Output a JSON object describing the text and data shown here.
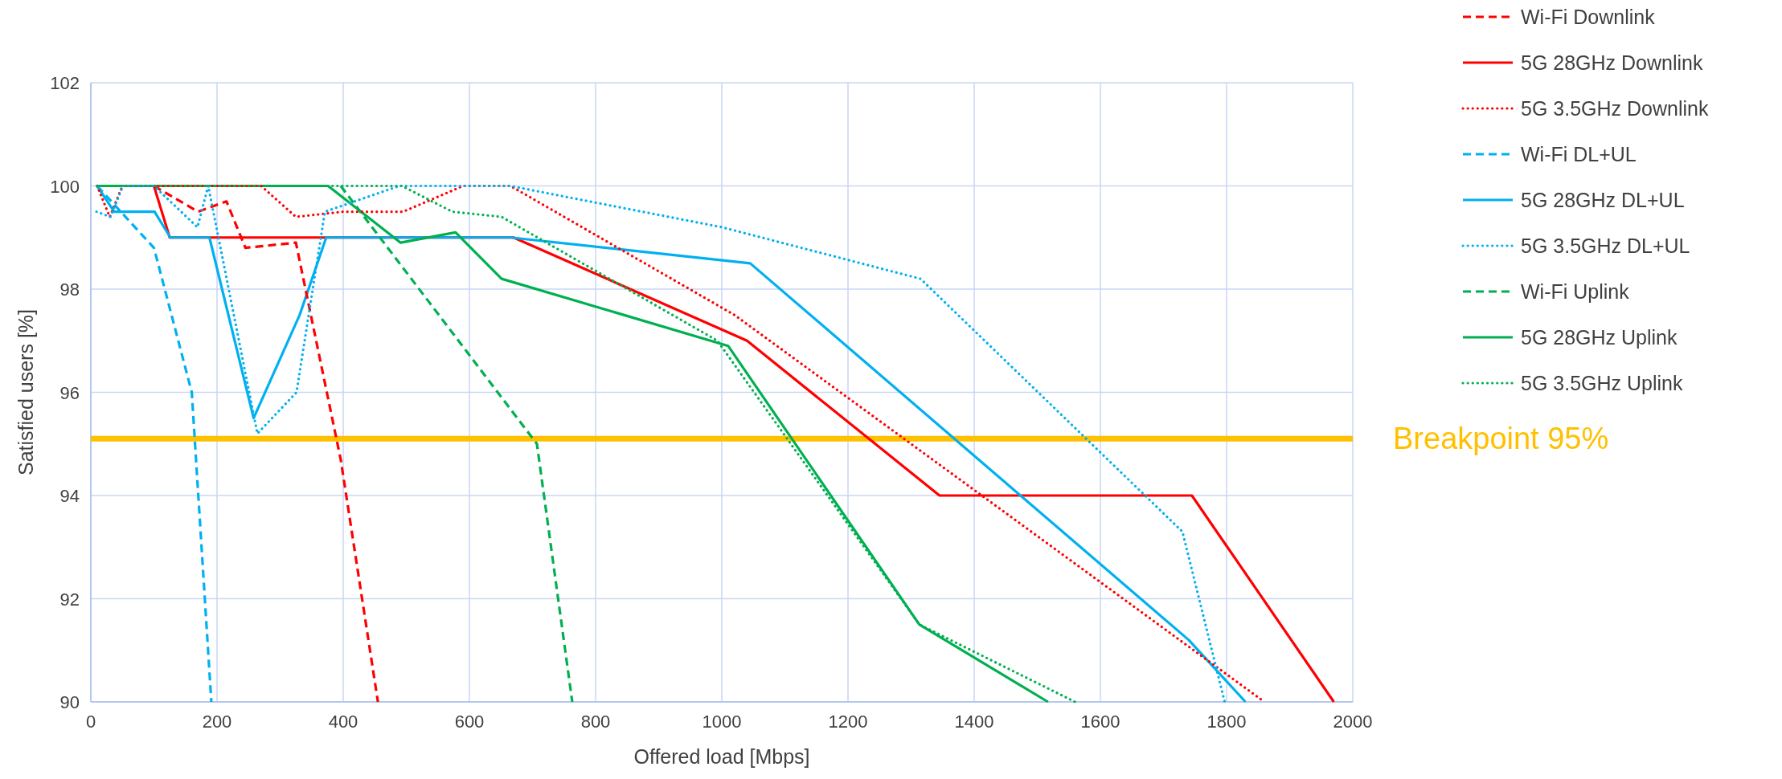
{
  "chart_data": {
    "type": "line",
    "xlabel": "Offered load [Mbps]",
    "ylabel": "Satisfied users [%]",
    "xlim": [
      0,
      2000
    ],
    "xticks": [
      0,
      200,
      400,
      600,
      800,
      1000,
      1200,
      1400,
      1600,
      1800,
      2000
    ],
    "ylim": [
      90,
      102
    ],
    "yticks": [
      90,
      92,
      94,
      96,
      98,
      100,
      102
    ],
    "grid": true,
    "legend": "top right",
    "marker": "none",
    "series": [
      {
        "name": "Wi-Fi Downlink",
        "color": "#ff0000",
        "line_style": "dashed",
        "x": [
          100,
          170,
          215,
          245,
          325,
          396,
          455
        ],
        "values": [
          100,
          99.5,
          99.7,
          98.8,
          98.9,
          94.7,
          90
        ]
      },
      {
        "name": "5G 28GHz Downlink",
        "color": "#ff0000",
        "line_style": "solid",
        "x": [
          10,
          100,
          125,
          670,
          1040,
          1345,
          1745,
          1970
        ],
        "values": [
          100,
          100,
          99,
          99,
          97,
          94,
          94,
          90
        ]
      },
      {
        "name": "5G 3.5GHz Downlink",
        "color": "#ff0000",
        "line_style": "dotted",
        "x": [
          10,
          30,
          50,
          270,
          325,
          400,
          495,
          590,
          665,
          1020,
          1860
        ],
        "values": [
          100,
          99.4,
          100,
          100,
          99.4,
          99.5,
          99.5,
          100,
          100,
          97.5,
          90
        ]
      },
      {
        "name": "Wi-Fi DL+UL",
        "color": "#00b0f0",
        "line_style": "dashed",
        "x": [
          10,
          100,
          160,
          191
        ],
        "values": [
          100,
          98.8,
          96,
          90
        ]
      },
      {
        "name": "5G 28GHz DL+UL",
        "color": "#00b0f0",
        "line_style": "solid",
        "x": [
          10,
          37,
          101,
          126,
          188,
          258,
          331,
          373,
          665,
          1045,
          1740,
          1830
        ],
        "values": [
          100,
          99.5,
          99.5,
          99,
          99,
          95.5,
          97.5,
          99,
          99,
          98.5,
          91.2,
          90
        ]
      },
      {
        "name": "5G 3.5GHz DL+UL",
        "color": "#00b0f0",
        "line_style": "dotted",
        "x": [
          9,
          31,
          51,
          100,
          169,
          186,
          264,
          326,
          371,
          489,
          665,
          748,
          1000,
          1315,
          1730,
          1797
        ],
        "values": [
          99.5,
          99.4,
          100,
          100,
          99.2,
          100,
          95.2,
          96,
          99.5,
          100,
          100,
          99.8,
          99.2,
          98.2,
          93.3,
          90
        ]
      },
      {
        "name": "Wi-Fi Uplink",
        "color": "#00b050",
        "line_style": "dashed",
        "x": [
          396,
          707,
          763
        ],
        "values": [
          100,
          95,
          90
        ]
      },
      {
        "name": "5G 28GHz Uplink",
        "color": "#00b050",
        "line_style": "solid",
        "x": [
          10,
          376,
          491,
          578,
          651,
          1010,
          1313,
          1517
        ],
        "values": [
          100,
          100,
          98.9,
          99.1,
          98.2,
          96.9,
          91.5,
          90
        ]
      },
      {
        "name": "5G 3.5GHz Uplink",
        "color": "#00b050",
        "line_style": "dotted",
        "x": [
          10,
          493,
          573,
          651,
          993,
          1313,
          1560
        ],
        "values": [
          100,
          100,
          99.5,
          99.4,
          97,
          91.5,
          90
        ]
      }
    ],
    "ref_lines": [
      {
        "axis": "y",
        "value": 95.1,
        "label": "Breakpoint 95%",
        "color": "#ffc000"
      }
    ]
  }
}
